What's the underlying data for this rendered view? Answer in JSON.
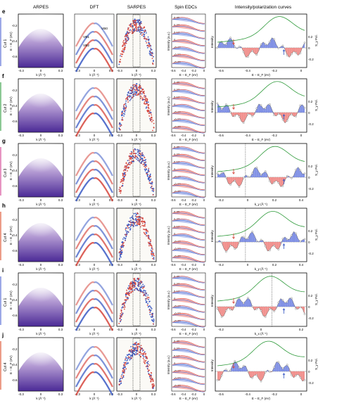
{
  "columns": [
    "ARPES",
    "DFT",
    "SARPES",
    "Spin EDCs",
    "Intensity/polarization curves"
  ],
  "panels": [
    {
      "letter": "e",
      "cut": "Cut 1",
      "cut_color": "#5a6fd6",
      "axis": "E",
      "inline": [
        "VB0",
        "VB1",
        "VB2"
      ],
      "edc_ticks": [
        "0.35",
        "0.23",
        "0.12",
        "0",
        "-0.12",
        "-0.23",
        "-0.35"
      ],
      "right_xticks": [
        "-0.6",
        "-0.4",
        "-0.2",
        "0"
      ],
      "right_xlabel": "E − E_F (eV)",
      "pol_ticks": [
        "0.2",
        "0",
        "-0.2"
      ]
    },
    {
      "letter": "f",
      "cut": "Cut 2",
      "cut_color": "#3fa34d",
      "axis": "E",
      "inline": [],
      "edc_ticks": [
        "0.35",
        "0.23",
        "0.12",
        "0",
        "-0.12",
        "-0.23",
        "-0.35"
      ],
      "right_xticks": [
        "-0.6",
        "-0.4",
        "-0.2",
        "0"
      ],
      "right_xlabel": "E − E_F (eV)",
      "pol_ticks": [
        "0.2",
        "0",
        "-0.2"
      ]
    },
    {
      "letter": "g",
      "cut": "Cut 3",
      "cut_color": "#d44c9a",
      "axis": "k",
      "inline": [],
      "edc_ticks": [
        "0.35",
        "0.23",
        "0.12",
        "0",
        "-0.12",
        "-0.23",
        "-0.35"
      ],
      "right_xticks": [
        "-0.2",
        "0",
        "0.2",
        "0.4"
      ],
      "right_xlabel": "k_y (Å⁻¹)",
      "pol_ticks": [
        "0.2",
        "0",
        "-0.2"
      ]
    },
    {
      "letter": "h",
      "cut": "Cut 4",
      "cut_color": "#e05a3a",
      "axis": "k",
      "inline": [],
      "edc_ticks": [
        "0.35",
        "0.23",
        "0.12",
        "0",
        "-0.12",
        "-0.23",
        "-0.35"
      ],
      "right_xticks": [
        "-0.2",
        "0",
        "0.2",
        "0.4"
      ],
      "right_xlabel": "k_y (Å⁻¹)",
      "pol_ticks": [
        "0.2",
        "0",
        "-0.2"
      ]
    },
    {
      "letter": "i",
      "cut": "Cut 1",
      "cut_color": "#5a6fd6",
      "axis": "k",
      "inline": [],
      "edc_ticks": [
        "0.35",
        "0.23",
        "0.12",
        "0",
        "-0.12",
        "-0.23",
        "-0.35"
      ],
      "right_xticks": [
        "-0.2",
        "0",
        "0.2"
      ],
      "right_xlabel": "k_x (Å⁻¹)",
      "pol_ticks": [
        "0.2",
        "0",
        "-0.2"
      ]
    },
    {
      "letter": "j",
      "cut": "Cut 4",
      "cut_color": "#e05a3a",
      "axis": "E",
      "inline": [],
      "edc_ticks": [
        "0.35",
        "0.23",
        "0.12",
        "0",
        "-0.12",
        "-0.23",
        "-0.35"
      ],
      "right_xticks": [
        "-0.6",
        "-0.4",
        "-0.2",
        "0"
      ],
      "right_xlabel": "E − E_F (eV)",
      "pol_ticks": [
        "0.2",
        "0",
        "-0.2"
      ]
    }
  ],
  "common": {
    "yticks": [
      "-0.2",
      "-0.4",
      "-0.6"
    ],
    "ylabel": "E − E_F (eV)",
    "xticks": [
      "-0.3",
      "0",
      "0.3"
    ],
    "xlabel": "k (Å⁻¹)",
    "edc_ylabel": "Intensity (a.u.)",
    "edc_xticks": [
      "-0.6",
      "-0.4",
      "-0.2",
      "0"
    ],
    "edc_xlabel": "E − E_F (eV)",
    "int_ylabel": "Intensity",
    "pol_ylabel": "S_y Pol."
  }
}
